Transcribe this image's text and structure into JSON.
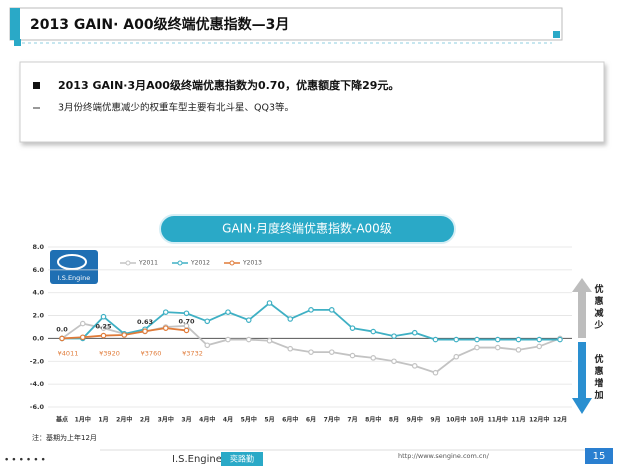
{
  "slide": {
    "title": "2013 GAIN· A00级终端优惠指数—3月",
    "bullets": [
      "2013 GAIN·3月A00级终端优惠指数为0.70，优惠额度下降29元。",
      "3月份终端优惠减少的权重车型主要有北斗星、QQ3等。"
    ],
    "logo": "I.S.Engine",
    "note": "注：基期为上年12月",
    "up_label": "优惠减少",
    "down_label": "优惠增加",
    "footer_brand": "I.S.Engine",
    "footer_brand_cn": "奕路勤",
    "footer_url": "http://www.sengine.com.cn/",
    "page_number": "15"
  },
  "chart_data": {
    "type": "line",
    "title": "GAIN·月度终端优惠指数-A00级",
    "categories": [
      "基点",
      "1月中",
      "1月",
      "2月中",
      "2月",
      "3月中",
      "3月",
      "4月中",
      "4月",
      "5月中",
      "5月",
      "6月中",
      "6月",
      "7月中",
      "7月",
      "8月中",
      "8月",
      "9月中",
      "9月",
      "10月中",
      "10月",
      "11月中",
      "11月",
      "12月中",
      "12月"
    ],
    "series": [
      {
        "name": "Y2011",
        "color": "#c3c3c3",
        "values": [
          0,
          1.3,
          0.9,
          0.4,
          0.6,
          1.0,
          1.1,
          -0.6,
          -0.1,
          -0.1,
          -0.2,
          -0.9,
          -1.2,
          -1.2,
          -1.5,
          -1.7,
          -2.0,
          -2.4,
          -3.0,
          -1.6,
          -0.8,
          -0.8,
          -1.0,
          -0.7,
          0.0
        ]
      },
      {
        "name": "Y2012",
        "color": "#3fb0c4",
        "values": [
          0,
          0.0,
          1.9,
          0.4,
          0.8,
          2.3,
          2.2,
          1.5,
          2.3,
          1.6,
          3.1,
          1.7,
          2.5,
          2.5,
          0.9,
          0.6,
          0.2,
          0.5,
          -0.1,
          -0.1,
          -0.1,
          -0.1,
          -0.1,
          -0.1,
          -0.1
        ]
      },
      {
        "name": "Y2013",
        "color": "#e07b39",
        "values": [
          0,
          0.1,
          0.25,
          0.3,
          0.63,
          0.9,
          0.7,
          null,
          null,
          null,
          null,
          null,
          null,
          null,
          null,
          null,
          null,
          null,
          null,
          null,
          null,
          null,
          null,
          null,
          null
        ],
        "value_labels": [
          "0.0",
          null,
          "0.25",
          null,
          "0.63",
          null,
          "0.70",
          null,
          null,
          null,
          null,
          null,
          null,
          null,
          null,
          null,
          null,
          null,
          null,
          null,
          null,
          null,
          null,
          null,
          null
        ],
        "price_labels": [
          "¥4011",
          null,
          "¥3920",
          null,
          "¥3760",
          null,
          "¥3732",
          null,
          null,
          null,
          null,
          null,
          null,
          null,
          null,
          null,
          null,
          null,
          null,
          null,
          null,
          null,
          null,
          null,
          null
        ]
      }
    ],
    "ylim": [
      -6,
      8
    ],
    "yticks": [
      {
        "value": -6,
        "label": "-6.0"
      },
      {
        "value": -4,
        "label": "-4.0"
      },
      {
        "value": -2,
        "label": "-2.0"
      },
      {
        "value": 0,
        "label": "0.0"
      },
      {
        "value": 2,
        "label": "2.0"
      },
      {
        "value": 4,
        "label": "4.0"
      },
      {
        "value": 6,
        "label": "6.0"
      },
      {
        "value": 8,
        "label": "8.0"
      }
    ],
    "grid": true,
    "legend": "top"
  }
}
